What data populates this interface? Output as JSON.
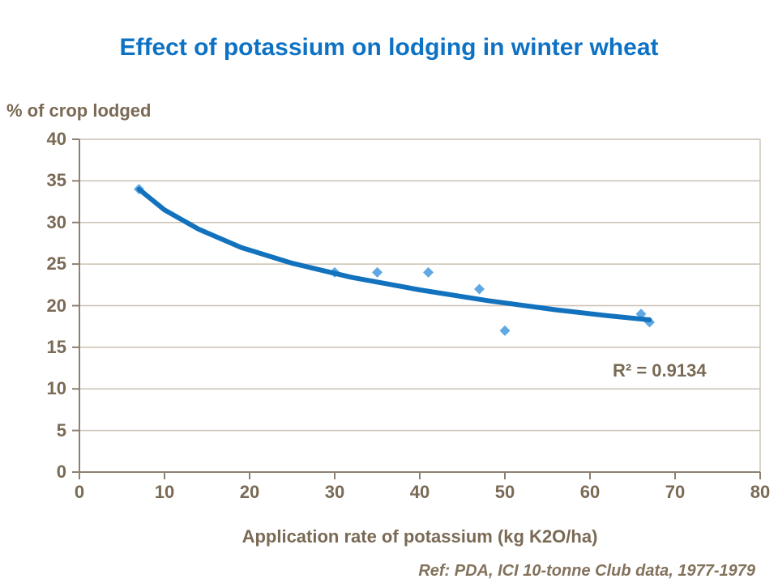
{
  "slide": {
    "title": "Effect of potassium on lodging in winter wheat",
    "ref": "Ref: PDA, ICI 10-tonne Club data, 1977-1979"
  },
  "chart_data": {
    "type": "scatter",
    "title": "Effect of potassium on lodging in winter wheat",
    "xlabel": "Application rate of potassium (kg K2O/ha)",
    "ylabel": "% of crop lodged",
    "xlim": [
      0,
      80
    ],
    "ylim": [
      0,
      40
    ],
    "x_ticks": [
      0,
      10,
      20,
      30,
      40,
      50,
      60,
      70,
      80
    ],
    "y_ticks": [
      0,
      5,
      10,
      15,
      20,
      25,
      30,
      35,
      40
    ],
    "grid": "horizontal-only",
    "legend": "none",
    "points": [
      [
        7,
        34
      ],
      [
        30,
        24
      ],
      [
        35,
        24
      ],
      [
        41,
        24
      ],
      [
        47,
        22
      ],
      [
        50,
        17
      ],
      [
        66,
        19
      ],
      [
        67,
        18
      ]
    ],
    "trend": {
      "type": "logarithmic",
      "r2_label": "R² = 0.9134",
      "curve_points": [
        [
          7,
          34.0
        ],
        [
          10,
          31.5
        ],
        [
          14,
          29.2
        ],
        [
          19,
          27.0
        ],
        [
          25,
          25.1
        ],
        [
          32,
          23.4
        ],
        [
          40,
          21.9
        ],
        [
          48,
          20.6
        ],
        [
          56,
          19.5
        ],
        [
          62,
          18.8
        ],
        [
          67,
          18.3
        ]
      ]
    },
    "colors": {
      "title": "#0D72C4",
      "text": "#7A6A55",
      "ref_text": "#83725C",
      "grid": "#C9C0B1",
      "axis": "#8C8070",
      "point": "#5FA8E4",
      "trend": "#1272BD"
    }
  }
}
